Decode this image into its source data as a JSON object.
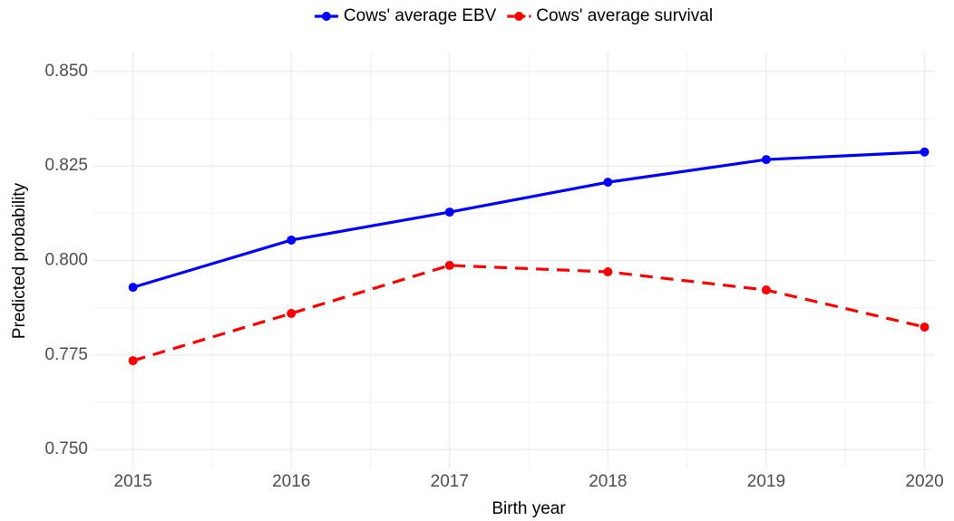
{
  "chart_data": {
    "type": "line",
    "x_label": "Birth year",
    "y_label": "Predicted probability",
    "x": [
      2015,
      2016,
      2017,
      2018,
      2019,
      2020
    ],
    "series": [
      {
        "name": "Cows' average EBV",
        "color": "#0000ff",
        "line_style": "solid",
        "values": [
          0.7929,
          0.8054,
          0.8128,
          0.8207,
          0.8267,
          0.8287
        ]
      },
      {
        "name": "Cows' average survival",
        "color": "#ff0000",
        "line_style": "dashed",
        "values": [
          0.7735,
          0.786,
          0.7987,
          0.797,
          0.7922,
          0.7824
        ]
      }
    ],
    "xlim": [
      2014.75,
      2020.06
    ],
    "ylim": [
      0.745,
      0.855
    ],
    "xticks": [
      2015,
      2016,
      2017,
      2018,
      2019,
      2020
    ],
    "yticks": [
      {
        "value": 0.75,
        "label": "0.750"
      },
      {
        "value": 0.775,
        "label": "0.775"
      },
      {
        "value": 0.8,
        "label": "0.800"
      },
      {
        "value": 0.825,
        "label": "0.825"
      },
      {
        "value": 0.85,
        "label": "0.850"
      }
    ],
    "grid": true,
    "minor_grid": true,
    "legend_position": "top"
  }
}
